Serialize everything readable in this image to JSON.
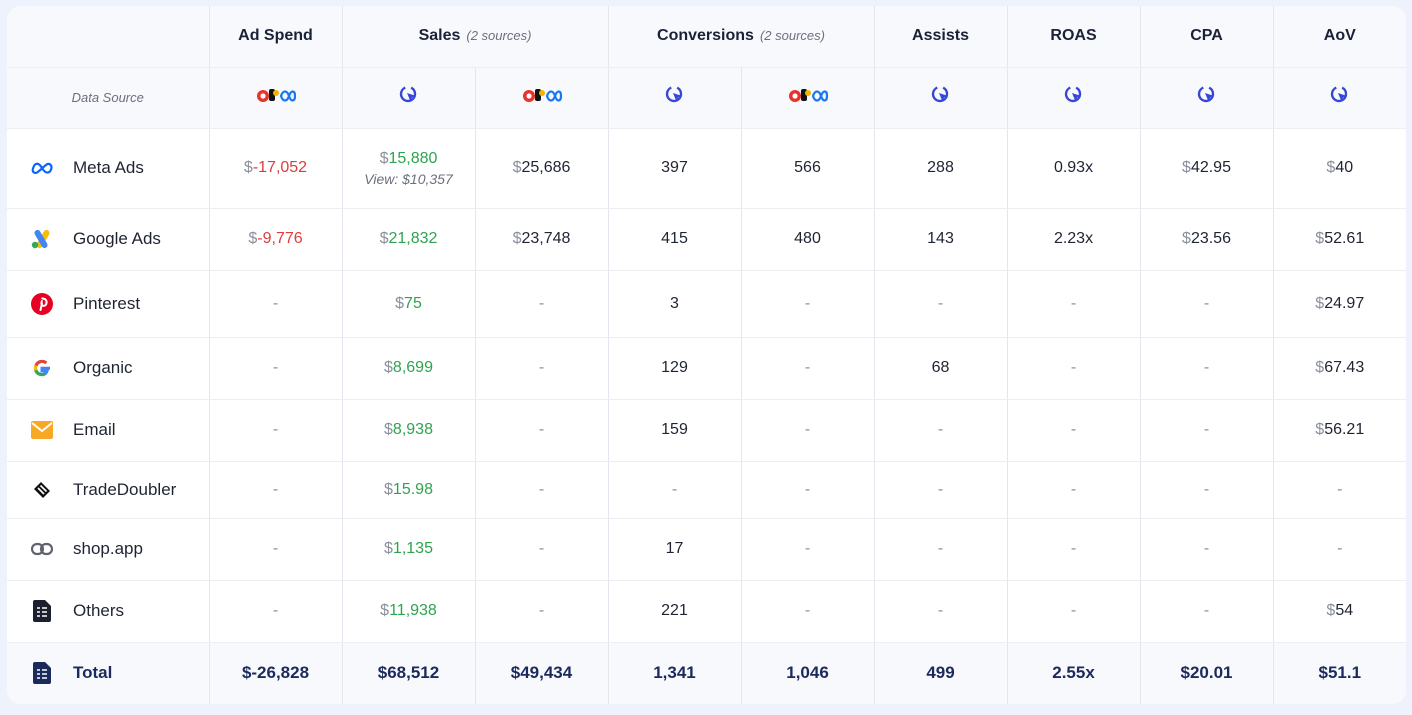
{
  "colors": {
    "negative": "#e03b3b",
    "positive": "#2ea44f",
    "total_text": "#1b2a5c",
    "cursor_icon": "#3547d6"
  },
  "headers": {
    "ad_spend": "Ad Spend",
    "sales": "Sales",
    "sales_sub": "(2 sources)",
    "conversions": "Conversions",
    "conversions_sub": "(2 sources)",
    "assists": "Assists",
    "roas": "ROAS",
    "cpa": "CPA",
    "aov": "AoV"
  },
  "data_source_label": "Data Source",
  "data_sources": [
    "platform-logos-icon",
    "attribution-cursor-icon",
    "platform-logos-icon",
    "attribution-cursor-icon",
    "platform-logos-icon",
    "attribution-cursor-icon",
    "attribution-cursor-icon",
    "attribution-cursor-icon",
    "attribution-cursor-icon"
  ],
  "rows": [
    {
      "icon": "meta-icon",
      "name": "Meta Ads",
      "ad_spend": {
        "cur": "$",
        "val": "-17,052",
        "type": "neg"
      },
      "sales1": {
        "cur": "$",
        "val": "15,880",
        "type": "pos",
        "view": "View: $10,357"
      },
      "sales2": {
        "cur": "$",
        "val": "25,686",
        "type": "plain"
      },
      "conv1": "397",
      "conv2": "566",
      "assists": "288",
      "roas": "0.93x",
      "cpa": {
        "cur": "$",
        "val": "42.95"
      },
      "aov": {
        "cur": "$",
        "val": "40"
      }
    },
    {
      "icon": "google-ads-icon",
      "name": "Google Ads",
      "ad_spend": {
        "cur": "$",
        "val": "-9,776",
        "type": "neg"
      },
      "sales1": {
        "cur": "$",
        "val": "21,832",
        "type": "pos"
      },
      "sales2": {
        "cur": "$",
        "val": "23,748",
        "type": "plain"
      },
      "conv1": "415",
      "conv2": "480",
      "assists": "143",
      "roas": "2.23x",
      "cpa": {
        "cur": "$",
        "val": "23.56"
      },
      "aov": {
        "cur": "$",
        "val": "52.61"
      }
    },
    {
      "icon": "pinterest-icon",
      "name": "Pinterest",
      "ad_spend": null,
      "sales1": {
        "cur": "$",
        "val": "75",
        "type": "pos"
      },
      "sales2": null,
      "conv1": "3",
      "conv2": null,
      "assists": null,
      "roas": null,
      "cpa": null,
      "aov": {
        "cur": "$",
        "val": "24.97"
      }
    },
    {
      "icon": "google-icon",
      "name": "Organic",
      "ad_spend": null,
      "sales1": {
        "cur": "$",
        "val": "8,699",
        "type": "pos"
      },
      "sales2": null,
      "conv1": "129",
      "conv2": null,
      "assists": "68",
      "roas": null,
      "cpa": null,
      "aov": {
        "cur": "$",
        "val": "67.43"
      }
    },
    {
      "icon": "email-icon",
      "name": "Email",
      "ad_spend": null,
      "sales1": {
        "cur": "$",
        "val": "8,938",
        "type": "pos"
      },
      "sales2": null,
      "conv1": "159",
      "conv2": null,
      "assists": null,
      "roas": null,
      "cpa": null,
      "aov": {
        "cur": "$",
        "val": "56.21"
      }
    },
    {
      "icon": "tradedoubler-icon",
      "name": "TradeDoubler",
      "ad_spend": null,
      "sales1": {
        "cur": "$",
        "val": "15.98",
        "type": "pos"
      },
      "sales2": null,
      "conv1": null,
      "conv2": null,
      "assists": null,
      "roas": null,
      "cpa": null,
      "aov": null
    },
    {
      "icon": "link-icon",
      "name": "shop.app",
      "ad_spend": null,
      "sales1": {
        "cur": "$",
        "val": "1,135",
        "type": "pos"
      },
      "sales2": null,
      "conv1": "17",
      "conv2": null,
      "assists": null,
      "roas": null,
      "cpa": null,
      "aov": null
    },
    {
      "icon": "document-icon",
      "name": "Others",
      "ad_spend": null,
      "sales1": {
        "cur": "$",
        "val": "11,938",
        "type": "pos"
      },
      "sales2": null,
      "conv1": "221",
      "conv2": null,
      "assists": null,
      "roas": null,
      "cpa": null,
      "aov": {
        "cur": "$",
        "val": "54"
      }
    }
  ],
  "dash": "-",
  "total": {
    "icon": "document-icon",
    "name": "Total",
    "ad_spend": "$-26,828",
    "sales1": "$68,512",
    "sales2": "$49,434",
    "conv1": "1,341",
    "conv2": "1,046",
    "assists": "499",
    "roas": "2.55x",
    "cpa": "$20.01",
    "aov": "$51.1"
  }
}
